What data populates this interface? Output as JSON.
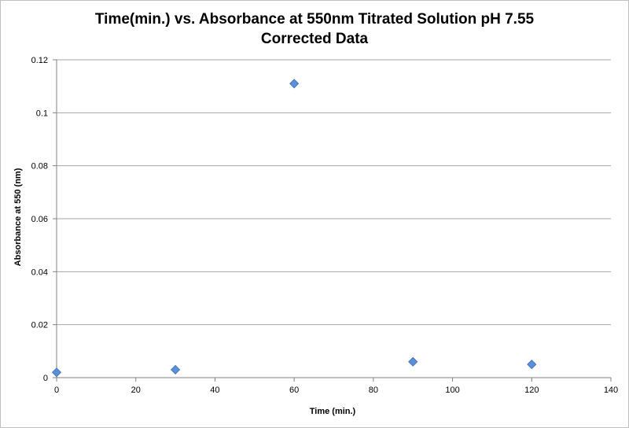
{
  "chart_data": {
    "type": "scatter",
    "title_lines": [
      "Time(min.) vs. Absorbance at 550nm Titrated Solution pH 7.55",
      "Corrected Data"
    ],
    "xlabel": "Time (min.)",
    "ylabel": "Absorbance at 550 (nm)",
    "xlim": [
      0,
      140
    ],
    "ylim": [
      0,
      0.12
    ],
    "x_ticks": [
      "0",
      "20",
      "40",
      "60",
      "80",
      "100",
      "120",
      "140"
    ],
    "y_ticks": [
      "0",
      "0.02",
      "0.04",
      "0.06",
      "0.08",
      "0.1",
      "0.12"
    ],
    "grid": "horizontal",
    "marker_color": "#5b8fd6",
    "marker_shape": "diamond",
    "series": [
      {
        "points": [
          {
            "x": 0,
            "y": 0.002
          },
          {
            "x": 30,
            "y": 0.003
          },
          {
            "x": 60,
            "y": 0.111
          },
          {
            "x": 90,
            "y": 0.006
          },
          {
            "x": 120,
            "y": 0.005
          }
        ]
      }
    ]
  }
}
